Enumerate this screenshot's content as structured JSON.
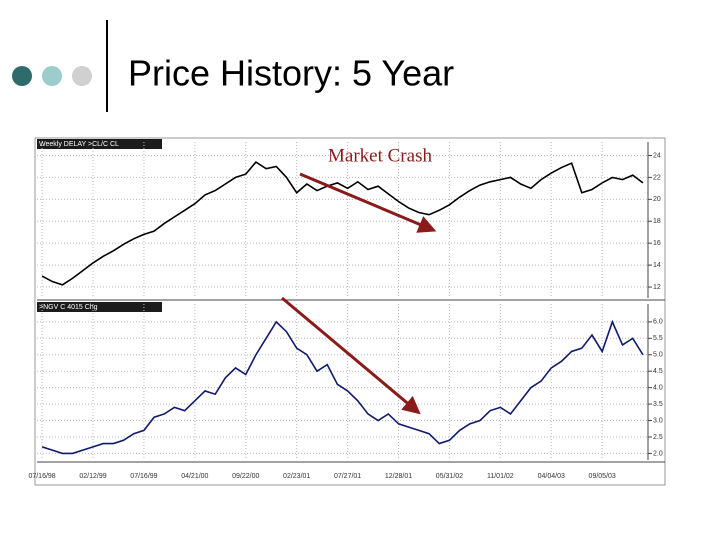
{
  "slide_title": "Price History: 5 Year",
  "chart_data": [
    {
      "type": "line",
      "label": "Weekly DELAY >CL/C CL",
      "annotation": "Market Crash",
      "categories": [
        "07/16/98",
        null,
        null,
        null,
        null,
        "02/12/99",
        null,
        null,
        null,
        null,
        "07/16/99",
        null,
        null,
        null,
        null,
        "04/21/00",
        null,
        null,
        null,
        null,
        "09/22/00",
        null,
        null,
        null,
        null,
        "02/23/01",
        null,
        null,
        null,
        null,
        "07/27/01",
        null,
        null,
        null,
        null,
        "12/28/01",
        null,
        null,
        null,
        null,
        "05/31/02",
        null,
        null,
        null,
        null,
        "11/01/02",
        null,
        null,
        null,
        null,
        "04/04/03",
        null,
        null,
        null,
        null,
        "09/05/03",
        null,
        null,
        null,
        null
      ],
      "series": [
        {
          "name": "CL",
          "color": "#000000",
          "values": [
            13,
            12.5,
            12.2,
            12.8,
            13.5,
            14.2,
            14.8,
            15.3,
            15.9,
            16.4,
            16.8,
            17.1,
            17.8,
            18.4,
            19.0,
            19.6,
            20.4,
            20.8,
            21.4,
            22.0,
            22.3,
            23.4,
            22.8,
            23.0,
            22.0,
            20.6,
            21.4,
            20.8,
            21.2,
            21.5,
            21.0,
            21.6,
            20.9,
            21.2,
            20.5,
            19.8,
            19.2,
            18.8,
            18.6,
            19.0,
            19.5,
            20.2,
            20.8,
            21.3,
            21.6,
            21.8,
            22.0,
            21.4,
            21.0,
            21.8,
            22.4,
            22.9,
            23.3,
            20.6,
            20.9,
            21.5,
            22.0,
            21.8,
            22.2,
            21.5
          ]
        }
      ],
      "ylim": [
        11,
        24.5
      ],
      "yticks": [
        12,
        14,
        16,
        18,
        20,
        22,
        24
      ],
      "grid": true
    },
    {
      "type": "line",
      "label": ">NGV C 4015 Chg",
      "series": [
        {
          "name": "NGV",
          "color": "#101a6b",
          "values": [
            2.2,
            2.1,
            2.0,
            2.0,
            2.1,
            2.2,
            2.3,
            2.3,
            2.4,
            2.6,
            2.7,
            3.1,
            3.2,
            3.4,
            3.3,
            3.6,
            3.9,
            3.8,
            4.3,
            4.6,
            4.4,
            5.0,
            5.5,
            6.0,
            5.7,
            5.2,
            5.0,
            4.5,
            4.7,
            4.1,
            3.9,
            3.6,
            3.2,
            3.0,
            3.2,
            2.9,
            2.8,
            2.7,
            2.6,
            2.3,
            2.4,
            2.7,
            2.9,
            3.0,
            3.3,
            3.4,
            3.2,
            3.6,
            4.0,
            4.2,
            4.6,
            4.8,
            5.1,
            5.2,
            5.6,
            5.1,
            6.0,
            5.3,
            5.5,
            5.0
          ]
        }
      ],
      "ylim": [
        1.8,
        6.3
      ],
      "yticks": [
        {
          "value": 2.0,
          "label": "2.0"
        },
        {
          "value": 2.5,
          "label": "2.5"
        },
        {
          "value": 3.0,
          "label": "3.0"
        },
        {
          "value": 3.5,
          "label": "3.5"
        },
        {
          "value": 4.0,
          "label": "4.0"
        },
        {
          "value": 4.5,
          "label": "4.5"
        },
        {
          "value": 5.0,
          "label": "5.0"
        },
        {
          "value": 5.5,
          "label": "5.5"
        },
        {
          "value": 6.0,
          "label": "6.0"
        }
      ],
      "grid": true
    }
  ]
}
